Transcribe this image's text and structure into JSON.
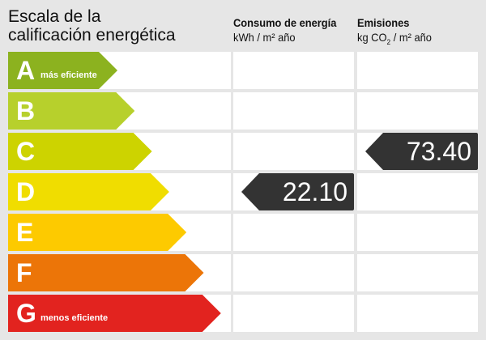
{
  "title_line1": "Escala de la",
  "title_line2": "calificación energética",
  "consumo": {
    "line1": "Consumo de energía",
    "unit": "kWh / m² año"
  },
  "emisiones": {
    "line1": "Emisiones",
    "unit_a": "kg CO",
    "unit_sub": "2",
    "unit_b": " / m² año"
  },
  "classes": [
    {
      "letter": "A",
      "label": "más eficiente",
      "color": "#8cb21f"
    },
    {
      "letter": "B",
      "label": "",
      "color": "#b7d02c"
    },
    {
      "letter": "C",
      "label": "",
      "color": "#cdd300"
    },
    {
      "letter": "D",
      "label": "",
      "color": "#f0dd00"
    },
    {
      "letter": "E",
      "label": "",
      "color": "#fdca00"
    },
    {
      "letter": "F",
      "label": "",
      "color": "#ec7508"
    },
    {
      "letter": "G",
      "label": "menos eficiente",
      "color": "#e2231f"
    }
  ],
  "consumo_value": {
    "value": "22.10",
    "class": "D"
  },
  "emisiones_value": {
    "value": "73.40",
    "class": "C"
  }
}
